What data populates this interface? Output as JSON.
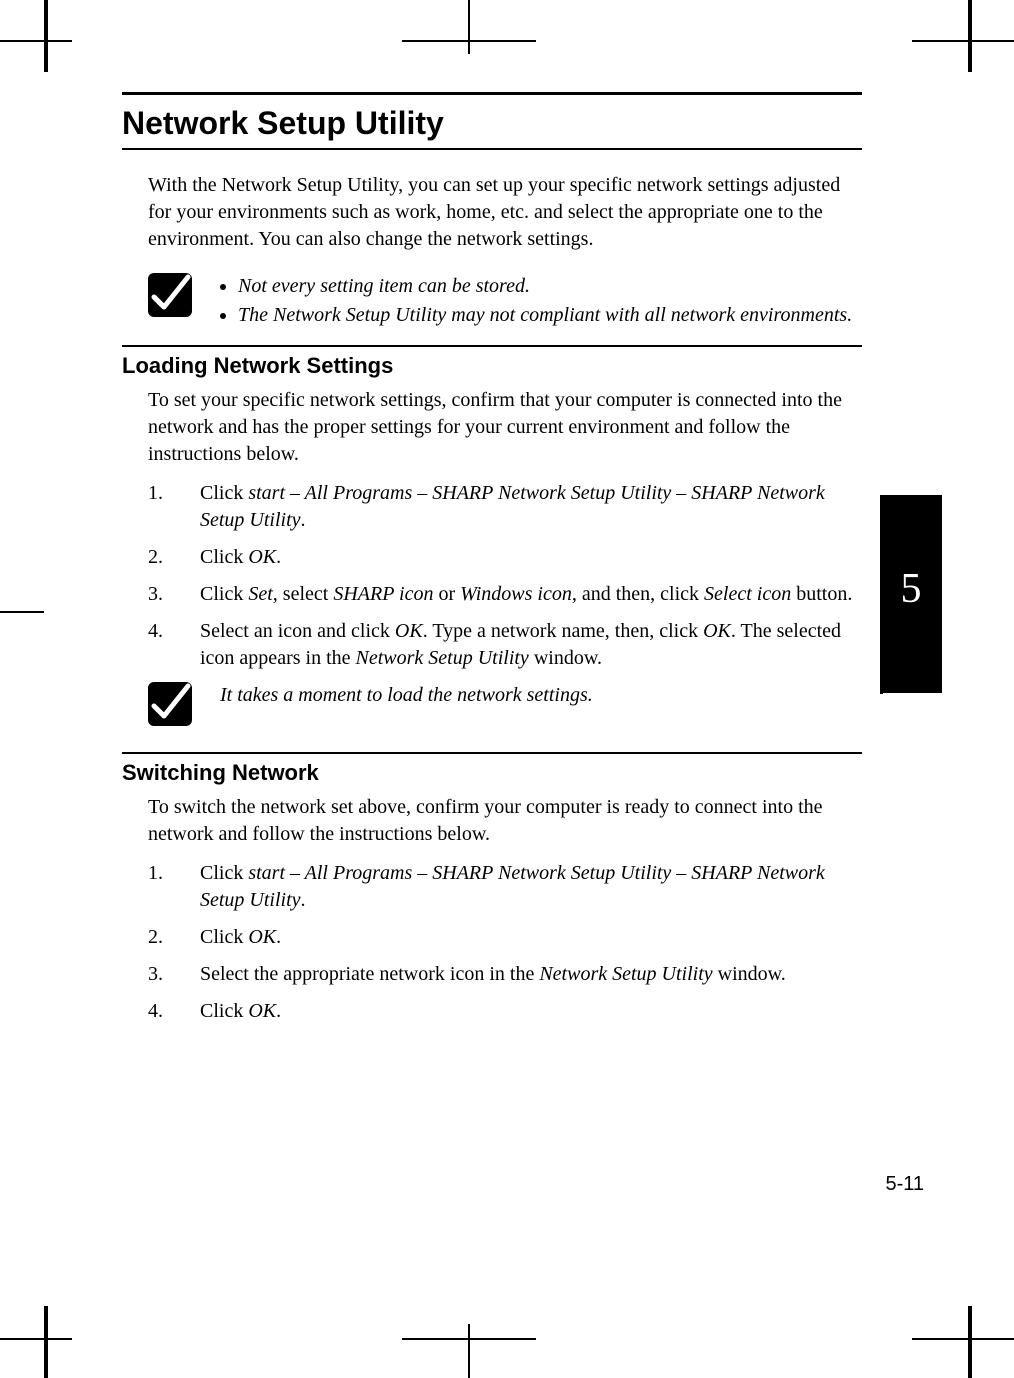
{
  "title": "Network Setup Utility",
  "intro": "With the Network Setup Utility, you can set up your specific network settings adjusted for your environments such as work, home, etc. and select the appropriate one to the environment. You can also change the network settings.",
  "note1": {
    "items": [
      "Not every setting item can be stored.",
      "The Network Setup Utility may not compliant with all network environments."
    ]
  },
  "section_loading": {
    "heading": "Loading Network Settings",
    "body": "To set your specific network settings, confirm that your computer is connected into the network and has the proper settings for your current environment and follow the instructions below.",
    "steps": [
      {
        "pre": "Click ",
        "em1": "start – All Programs – SHARP Network Setup Utility – SHARP Network Setup Utility",
        "post": "."
      },
      {
        "pre": "Click ",
        "em1": "OK",
        "post": "."
      },
      {
        "pre": "Click ",
        "em1": "Set",
        "mid1": ", select ",
        "em2": "SHARP icon",
        "mid2": " or ",
        "em3": "Windows icon",
        "mid3": ", and then, click ",
        "em4": "Select icon",
        "post": " button."
      },
      {
        "pre": "Select an icon and click ",
        "em1": "OK",
        "mid1": ". Type a network name, then, click ",
        "em2": "OK",
        "mid2": ". The selected icon appears in the ",
        "em3": "Network Setup Utility",
        "post": " window."
      }
    ]
  },
  "note2": "It takes a moment to load the network settings.",
  "section_switching": {
    "heading": "Switching Network",
    "body": "To switch the network set above, confirm your computer is ready to connect into the network and follow the instructions below.",
    "steps": [
      {
        "pre": "Click ",
        "em1": "start – All Programs – SHARP Network Setup Utility – SHARP Network Setup Utility",
        "post": "."
      },
      {
        "pre": "Click ",
        "em1": "OK",
        "post": "."
      },
      {
        "pre": "Select the appropriate network icon in the ",
        "em1": "Network Setup Utility",
        "post": " window."
      },
      {
        "pre": "Click ",
        "em1": "OK",
        "post": "."
      }
    ]
  },
  "chapter_tab": "5",
  "page_number": "5-11",
  "colors": {
    "text": "#000000",
    "background": "#ffffff",
    "tab_bg": "#000000",
    "tab_text": "#ffffff"
  }
}
